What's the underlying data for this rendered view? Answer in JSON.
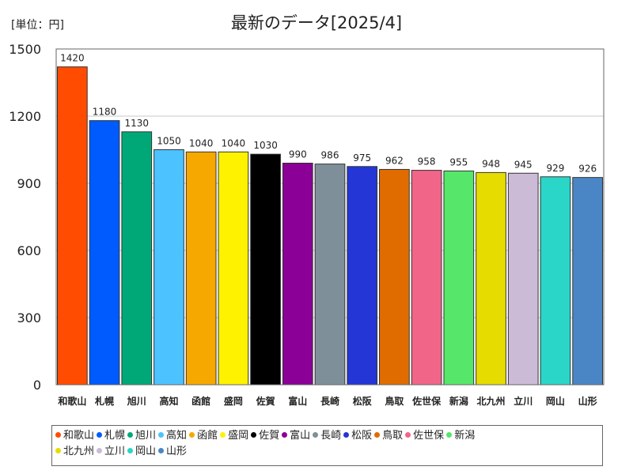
{
  "chart_data": {
    "type": "bar",
    "title": "最新のデータ[2025/4]",
    "unit_label": "[単位：円]",
    "categories": [
      "和歌山",
      "札幌",
      "旭川",
      "高知",
      "函館",
      "盛岡",
      "佐賀",
      "富山",
      "長崎",
      "松阪",
      "鳥取",
      "佐世保",
      "新潟",
      "北九州",
      "立川",
      "岡山",
      "山形"
    ],
    "values": [
      1420,
      1180,
      1130,
      1050,
      1040,
      1040,
      1030,
      990,
      986,
      975,
      962,
      958,
      955,
      948,
      945,
      929,
      926
    ],
    "colors": [
      "#ff4c00",
      "#005bff",
      "#00a878",
      "#4cc3ff",
      "#f7a800",
      "#fff200",
      "#000000",
      "#8b0096",
      "#7f8f99",
      "#2436d6",
      "#e06c00",
      "#f06588",
      "#55e66a",
      "#e6dc00",
      "#ccbbd6",
      "#2ad6c8",
      "#4a86c5"
    ],
    "ylim": [
      0,
      1500
    ],
    "yticks": [
      0,
      300,
      600,
      900,
      1200,
      1500
    ],
    "grid": true,
    "legend": "bottom"
  }
}
